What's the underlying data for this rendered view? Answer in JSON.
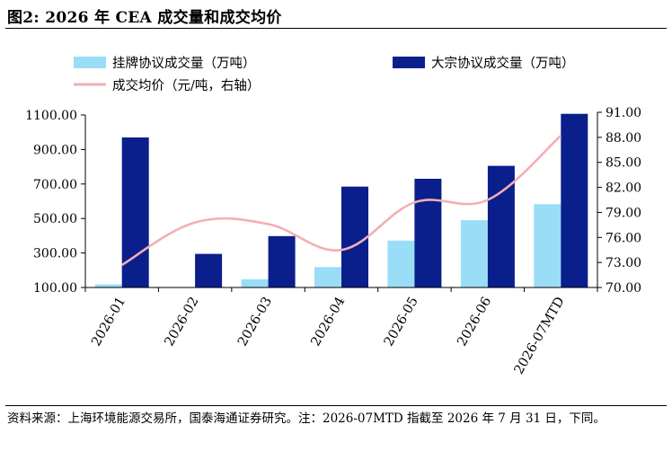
{
  "figure": {
    "title": "图2:  2026 年 CEA 成交量和成交均价",
    "source": "资料来源：上海环境能源交易所，国泰海通证券研究。注：2026-07MTD 指截至 2026 年 7 月 31 日，下同。"
  },
  "chart_data": {
    "type": "bar",
    "categories": [
      "2026-01",
      "2026-02",
      "2026-03",
      "2026-04",
      "2026-05",
      "2026-06",
      "2026-07MTD"
    ],
    "series": [
      {
        "name": "挂牌协议成交量（万吨）",
        "type": "bar",
        "axis": "left",
        "color": "#99DDF7",
        "values": [
          118,
          0,
          148,
          218,
          372,
          490,
          583
        ]
      },
      {
        "name": "大宗协议成交量（万吨）",
        "type": "bar",
        "axis": "left",
        "color": "#0A1E8C",
        "values": [
          970,
          295,
          398,
          685,
          730,
          805,
          1107
        ]
      },
      {
        "name": "成交均价（元/吨，右轴）",
        "type": "line",
        "axis": "right",
        "color": "#F2AFB3",
        "values": [
          72.7,
          77.8,
          77.6,
          74.5,
          80.2,
          80.5,
          88.2
        ]
      }
    ],
    "y_left": {
      "min": 100,
      "max": 1100,
      "ticks": [
        "1100.00",
        "900.00",
        "700.00",
        "500.00",
        "300.00",
        "100.00"
      ],
      "tick_values": [
        1100,
        900,
        700,
        500,
        300,
        100
      ]
    },
    "y_right": {
      "min": 70,
      "max": 91,
      "ticks": [
        "91.00",
        "88.00",
        "85.00",
        "82.00",
        "79.00",
        "76.00",
        "73.00",
        "70.00"
      ],
      "tick_values": [
        91,
        88,
        85,
        82,
        79,
        76,
        73,
        70
      ]
    },
    "grid": false,
    "legend_position": "top"
  }
}
